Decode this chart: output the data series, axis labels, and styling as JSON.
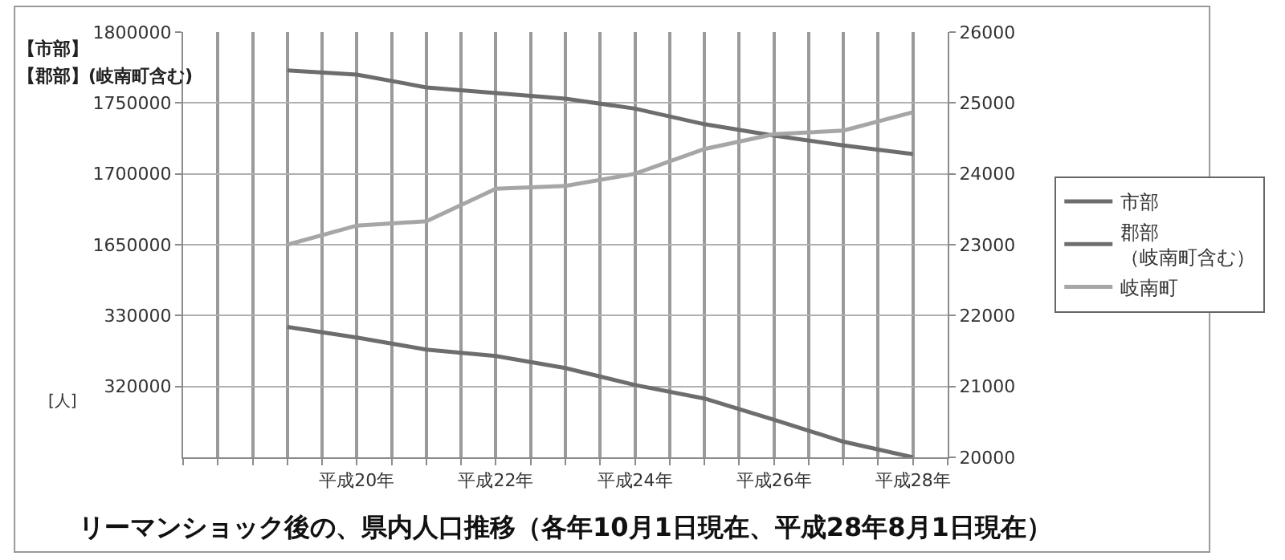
{
  "chart_data": {
    "type": "line",
    "title": "リーマンショック後の、県内人口推移（各年10月1日現在、平成28年8月1日現在）",
    "ylabel": "[人]",
    "annotations": [
      "【市部】",
      "【郡部】(岐南町含む)"
    ],
    "categories": [
      null,
      null,
      "平成20年",
      null,
      "平成22年",
      null,
      "平成24年",
      null,
      "平成26年",
      null,
      "平成28年"
    ],
    "ylim": [
      1500000,
      1800000
    ],
    "yticks": [
      1650000,
      1700000,
      1750000,
      1800000
    ],
    "y3lim": [
      310000,
      370000
    ],
    "y3ticks": [
      320000,
      330000
    ],
    "y2lim": [
      20000,
      26000
    ],
    "y2ticks": [
      20000,
      21000,
      22000,
      23000,
      24000,
      25000,
      26000
    ],
    "grid": true,
    "legend": "right",
    "marker": "none",
    "line_style": "solid",
    "series": [
      {
        "name": "市部",
        "color": "#6d6d6d",
        "values": [
          null,
          1773000,
          1770000,
          1761000,
          1757000,
          1753000,
          1746000,
          1735000,
          1727000,
          1720000,
          1714000
        ]
      },
      {
        "name": "郡部（岐南町含む）",
        "color": "#6d6d6d",
        "axis": "y3",
        "values": [
          null,
          328400,
          326900,
          325200,
          324300,
          322600,
          320200,
          318300,
          315300,
          312200,
          310000
        ]
      },
      {
        "name": "岐南町",
        "color": "#a6a6a6",
        "axis": "y2",
        "values": [
          null,
          23000,
          23270,
          23330,
          23790,
          23830,
          24000,
          24350,
          24560,
          24610,
          24870
        ]
      }
    ]
  }
}
